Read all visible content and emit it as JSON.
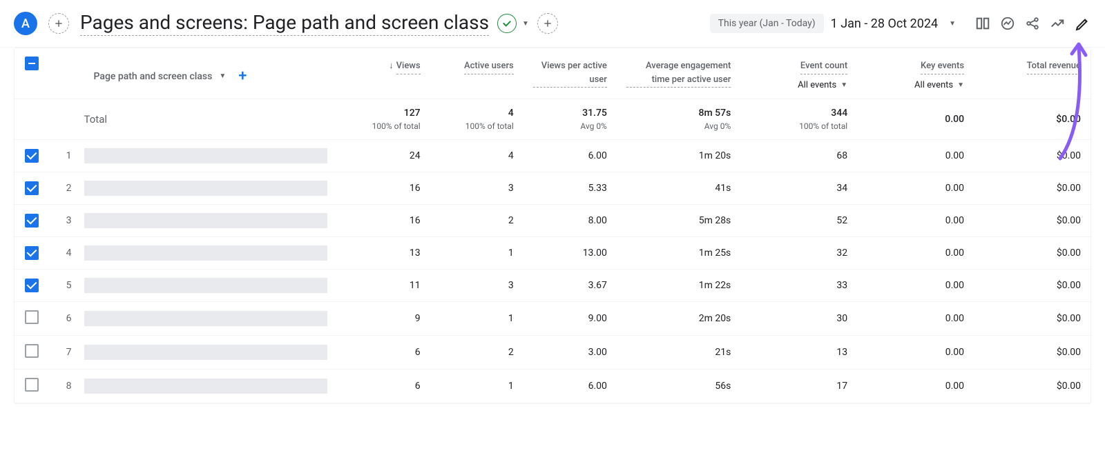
{
  "header": {
    "avatar_letter": "A",
    "title": "Pages and screens: Page path and screen class",
    "date_label": "This year (Jan - Today)",
    "date_value": "1 Jan - 28 Oct 2024"
  },
  "columns": {
    "dimension_label": "Page path and screen class",
    "views": "Views",
    "active_users": "Active users",
    "views_per_active_user": "Views per active user",
    "avg_engagement": "Average engagement time per active user",
    "event_count": "Event count",
    "event_count_filter": "All events",
    "key_events": "Key events",
    "key_events_filter": "All events",
    "total_revenue": "Total revenue"
  },
  "totals": {
    "label": "Total",
    "views": "127",
    "views_sub": "100% of total",
    "active_users": "4",
    "active_users_sub": "100% of total",
    "vpa": "31.75",
    "vpa_sub": "Avg 0%",
    "eng": "8m 57s",
    "eng_sub": "Avg 0%",
    "evt": "344",
    "evt_sub": "100% of total",
    "key": "0.00",
    "rev": "$0.00"
  },
  "rows": [
    {
      "idx": "1",
      "checked": true,
      "views": "24",
      "active": "4",
      "vpa": "6.00",
      "eng": "1m 20s",
      "evt": "68",
      "key": "0.00",
      "rev": "$0.00"
    },
    {
      "idx": "2",
      "checked": true,
      "views": "16",
      "active": "3",
      "vpa": "5.33",
      "eng": "41s",
      "evt": "34",
      "key": "0.00",
      "rev": "$0.00"
    },
    {
      "idx": "3",
      "checked": true,
      "views": "16",
      "active": "2",
      "vpa": "8.00",
      "eng": "5m 28s",
      "evt": "52",
      "key": "0.00",
      "rev": "$0.00"
    },
    {
      "idx": "4",
      "checked": true,
      "views": "13",
      "active": "1",
      "vpa": "13.00",
      "eng": "1m 25s",
      "evt": "32",
      "key": "0.00",
      "rev": "$0.00"
    },
    {
      "idx": "5",
      "checked": true,
      "views": "11",
      "active": "3",
      "vpa": "3.67",
      "eng": "1m 22s",
      "evt": "33",
      "key": "0.00",
      "rev": "$0.00"
    },
    {
      "idx": "6",
      "checked": false,
      "views": "9",
      "active": "1",
      "vpa": "9.00",
      "eng": "2m 20s",
      "evt": "30",
      "key": "0.00",
      "rev": "$0.00"
    },
    {
      "idx": "7",
      "checked": false,
      "views": "6",
      "active": "2",
      "vpa": "3.00",
      "eng": "21s",
      "evt": "13",
      "key": "0.00",
      "rev": "$0.00"
    },
    {
      "idx": "8",
      "checked": false,
      "views": "6",
      "active": "1",
      "vpa": "6.00",
      "eng": "56s",
      "evt": "17",
      "key": "0.00",
      "rev": "$0.00"
    }
  ],
  "colors": {
    "accent": "#1a73e8",
    "arrow": "#8a5cf6"
  }
}
